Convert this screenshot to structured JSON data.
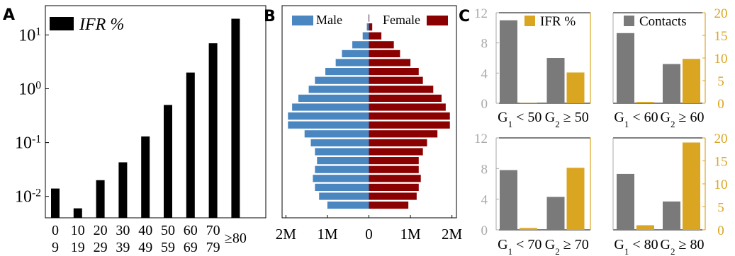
{
  "panel_labels": [
    "A",
    "B",
    "C"
  ],
  "colors": {
    "ifr_bar": "#000000",
    "male": "#4a86bf",
    "female": "#8b0000",
    "contacts": "#7a7a7a",
    "ifr_group": "#daa520",
    "axis_gray": "#aaaaaa",
    "axis_gold": "#daa520"
  },
  "chart_data": [
    {
      "id": "A",
      "type": "bar",
      "scale": "log",
      "legend": "IFR %",
      "legend_position": "top-left",
      "categories": [
        {
          "top": "0",
          "bottom": "9"
        },
        {
          "top": "10",
          "bottom": "19"
        },
        {
          "top": "20",
          "bottom": "29"
        },
        {
          "top": "30",
          "bottom": "39"
        },
        {
          "top": "40",
          "bottom": "49"
        },
        {
          "top": "50",
          "bottom": "59"
        },
        {
          "top": "60",
          "bottom": "69"
        },
        {
          "top": "70",
          "bottom": "79"
        },
        {
          "top": "≥80",
          "bottom": ""
        }
      ],
      "values": [
        0.014,
        0.006,
        0.02,
        0.043,
        0.13,
        0.5,
        2.0,
        7.0,
        20.0
      ],
      "ylim": [
        0.004,
        35
      ],
      "yticks": [
        {
          "value": 0.01,
          "base": "10",
          "exp": "-2"
        },
        {
          "value": 0.1,
          "base": "10",
          "exp": "-1"
        },
        {
          "value": 1,
          "base": "10",
          "exp": "0"
        },
        {
          "value": 10,
          "base": "10",
          "exp": "1"
        }
      ]
    },
    {
      "id": "B",
      "type": "bar",
      "orientation": "horizontal",
      "legend": [
        "Male",
        "Female"
      ],
      "legend_position": "top",
      "xticks": [
        {
          "value": -2,
          "label": "2M"
        },
        {
          "value": -1,
          "label": "1M"
        },
        {
          "value": 0,
          "label": "0"
        },
        {
          "value": 1,
          "label": "1M"
        },
        {
          "value": 2,
          "label": "2M"
        }
      ],
      "xlim": [
        -2.1,
        2.1
      ],
      "series": [
        {
          "name": "Male",
          "values": [
            1.0,
            1.2,
            1.3,
            1.35,
            1.3,
            1.25,
            1.3,
            1.4,
            1.55,
            1.95,
            1.95,
            1.85,
            1.7,
            1.45,
            1.3,
            1.05,
            0.8,
            0.65,
            0.4,
            0.15,
            0.05,
            0.01
          ]
        },
        {
          "name": "Female",
          "values": [
            0.95,
            1.15,
            1.2,
            1.25,
            1.2,
            1.2,
            1.3,
            1.4,
            1.65,
            1.95,
            1.95,
            1.85,
            1.75,
            1.55,
            1.3,
            1.2,
            1.0,
            0.75,
            0.6,
            0.3,
            0.08,
            0.01
          ]
        }
      ]
    },
    {
      "id": "C1",
      "type": "bar",
      "legend": "IFR %",
      "legend_position": "top-right",
      "groups": [
        {
          "base": "G",
          "sub": "1",
          "rest": " < 50"
        },
        {
          "base": "G",
          "sub": "2",
          "rest": " ≥ 50"
        }
      ],
      "series": [
        {
          "name": "Contacts",
          "values": [
            11.0,
            6.0
          ],
          "axis": "left"
        },
        {
          "name": "IFR %",
          "values": [
            0.05,
            6.8
          ],
          "axis": "right"
        }
      ],
      "left_ylim": [
        0,
        12
      ],
      "left_yticks": [
        "0",
        "4",
        "8",
        "12"
      ],
      "right_ylim": [
        0,
        20
      ],
      "right_yticks": []
    },
    {
      "id": "C2",
      "type": "bar",
      "legend": "Contacts",
      "legend_position": "top-left",
      "groups": [
        {
          "base": "G",
          "sub": "1",
          "rest": " < 60"
        },
        {
          "base": "G",
          "sub": "2",
          "rest": " ≥ 60"
        }
      ],
      "series": [
        {
          "name": "Contacts",
          "values": [
            9.3,
            5.2
          ],
          "axis": "left"
        },
        {
          "name": "IFR %",
          "values": [
            0.3,
            9.8
          ],
          "axis": "right"
        }
      ],
      "left_ylim": [
        0,
        12
      ],
      "left_yticks": [],
      "right_ylim": [
        0,
        20
      ],
      "right_yticks": [
        "0",
        "5",
        "10",
        "15",
        "20"
      ]
    },
    {
      "id": "C3",
      "type": "bar",
      "groups": [
        {
          "base": "G",
          "sub": "1",
          "rest": " < 70"
        },
        {
          "base": "G",
          "sub": "2",
          "rest": " ≥ 70"
        }
      ],
      "series": [
        {
          "name": "Contacts",
          "values": [
            7.8,
            4.3
          ],
          "axis": "left"
        },
        {
          "name": "IFR %",
          "values": [
            0.4,
            13.5
          ],
          "axis": "right"
        }
      ],
      "left_ylim": [
        0,
        12
      ],
      "left_yticks": [
        "0",
        "4",
        "8",
        "12"
      ],
      "right_ylim": [
        0,
        20
      ],
      "right_yticks": []
    },
    {
      "id": "C4",
      "type": "bar",
      "groups": [
        {
          "base": "G",
          "sub": "1",
          "rest": " < 80"
        },
        {
          "base": "G",
          "sub": "2",
          "rest": " ≥ 80"
        }
      ],
      "series": [
        {
          "name": "Contacts",
          "values": [
            7.3,
            3.7
          ],
          "axis": "left"
        },
        {
          "name": "IFR %",
          "values": [
            1.0,
            19.0
          ],
          "axis": "right"
        }
      ],
      "left_ylim": [
        0,
        12
      ],
      "left_yticks": [],
      "right_ylim": [
        0,
        20
      ],
      "right_yticks": [
        "0",
        "5",
        "10",
        "15",
        "20"
      ]
    }
  ]
}
